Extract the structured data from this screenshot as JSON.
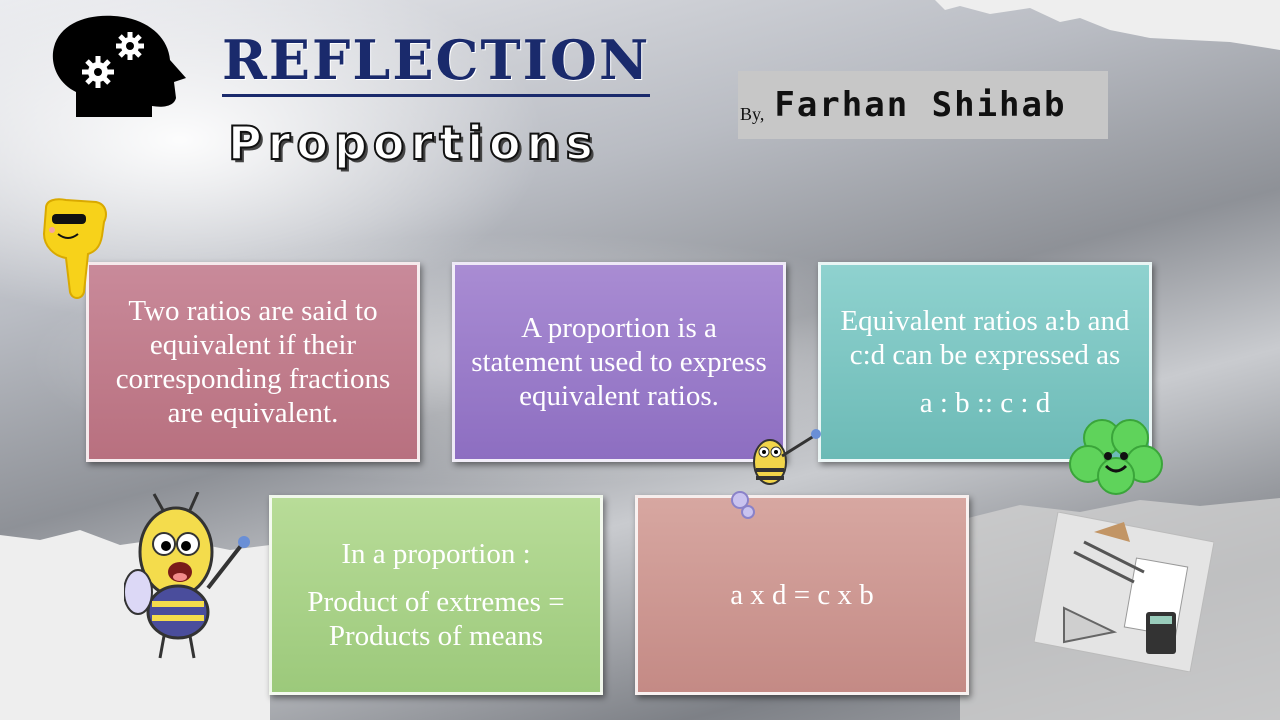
{
  "slide": {
    "title": "REFLECTION",
    "subtitle": "Proportions",
    "author_prefix": "By,",
    "author_name": "Farhan  Shihab"
  },
  "boxes": [
    {
      "lines": [
        "Two ratios are said to equivalent if their corresponding fractions are equivalent."
      ]
    },
    {
      "lines": [
        "A proportion is a statement used to express equivalent ratios."
      ]
    },
    {
      "lines": [
        "Equivalent ratios a:b and c:d can be expressed as",
        "a : b :: c : d"
      ]
    },
    {
      "lines": [
        "In a proportion :",
        "Product of extremes = Products of means"
      ]
    },
    {
      "lines": [
        "a x d = c x b"
      ]
    }
  ],
  "icons": {
    "head": "head-gears-icon",
    "hand": "sunglasses-hand-icon",
    "bee_small": "flying-bee-icon",
    "bee_large": "waving-bee-icon",
    "clover": "smiling-clover-icon",
    "tools": "drafting-tools-icon"
  }
}
